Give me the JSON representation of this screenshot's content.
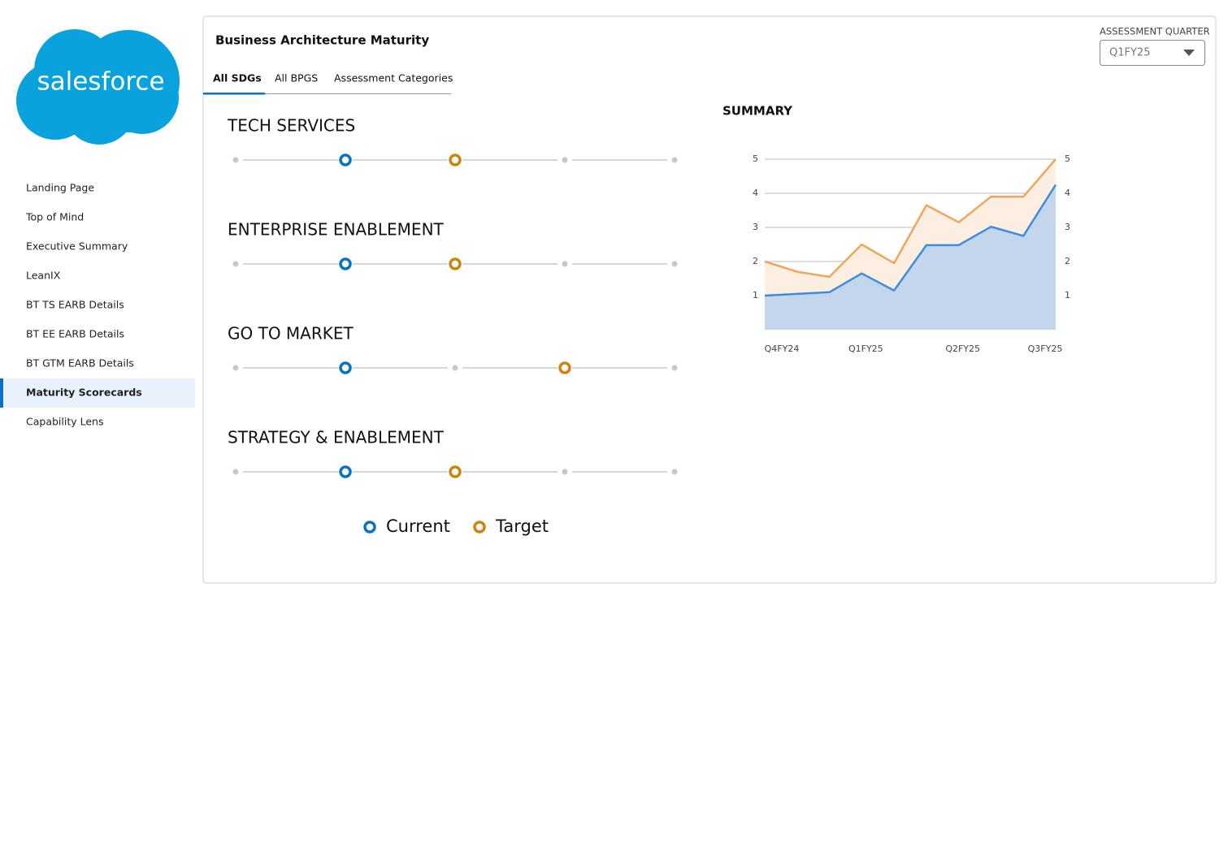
{
  "logo": "salesforce",
  "nav": [
    "Landing Page",
    "Top of Mind",
    "Executive Summary",
    "LeanIX",
    "BT TS EARB Details",
    "BT EE EARB Details",
    "BT GTM EARB Details",
    "Maturity Scorecards",
    "Capability Lens"
  ],
  "active_nav": 7,
  "header": {
    "title": "Business Architecture Maturity"
  },
  "tabs": [
    "All SDGs",
    "All BPGS",
    "Assessment Categories"
  ],
  "active_tab": 0,
  "quarter": {
    "label": "ASSESSMENT QUARTER",
    "value": "Q1FY25"
  },
  "scorecards": [
    {
      "name": "TECH SERVICES",
      "current": 2,
      "target": 3
    },
    {
      "name": "ENTERPRISE ENABLEMENT",
      "current": 2,
      "target": 3
    },
    {
      "name": "GO TO MARKET",
      "current": 2,
      "target": 4
    },
    {
      "name": "STRATEGY & ENABLEMENT",
      "current": 2,
      "target": 3
    }
  ],
  "legend": {
    "current": "Current",
    "target": "Target",
    "current_color": "#0b72c2",
    "target_color": "#d4820f"
  },
  "chart_data": {
    "type": "area",
    "title": "SUMMARY",
    "categories": [
      "Q4FY24",
      null,
      null,
      "Q1FY25",
      null,
      null,
      "Q2FY25",
      null,
      null,
      "Q3FY25"
    ],
    "series": [
      {
        "name": "Target",
        "color": "#f0a65a",
        "fill": "#fdeee2",
        "values": [
          2.0,
          1.7,
          1.55,
          2.5,
          1.95,
          3.65,
          3.15,
          3.9,
          3.9,
          5.0
        ]
      },
      {
        "name": "Current",
        "color": "#3b8de0",
        "fill": "#c3d6ec",
        "values": [
          1.0,
          1.05,
          1.1,
          1.65,
          1.15,
          2.48,
          2.48,
          3.02,
          2.75,
          4.25
        ]
      }
    ],
    "ylim": [
      0,
      5
    ],
    "yticks": [
      1,
      2,
      3,
      4,
      5
    ],
    "y2lim": [
      0,
      5
    ],
    "y2ticks": [
      1,
      2,
      3,
      4,
      5
    ],
    "grid": true
  }
}
